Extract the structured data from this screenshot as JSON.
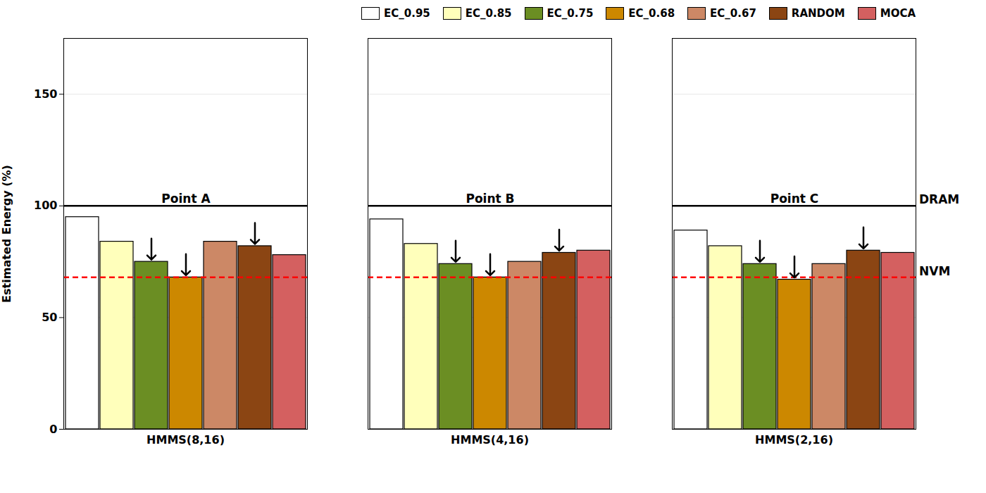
{
  "chart_data": {
    "type": "bar",
    "categories": [
      "HMMS(8,16)",
      "HMMS(4,16)",
      "HMMS(2,16)"
    ],
    "series": [
      {
        "name": "EC_0.95",
        "color": "#ffffff",
        "values": [
          95,
          94,
          89
        ]
      },
      {
        "name": "EC_0.85",
        "color": "#ffffbb",
        "values": [
          84,
          83,
          82
        ]
      },
      {
        "name": "EC_0.75",
        "color": "#6b8e23",
        "values": [
          75,
          74,
          74
        ]
      },
      {
        "name": "EC_0.68",
        "color": "#cc8800",
        "values": [
          68,
          68,
          67
        ]
      },
      {
        "name": "EC_0.67",
        "color": "#cc8866",
        "values": [
          84,
          75,
          74
        ]
      },
      {
        "name": "RANDOM",
        "color": "#8b4513",
        "values": [
          82,
          79,
          80
        ]
      },
      {
        "name": "MOCA",
        "color": "#d46060",
        "values": [
          78,
          80,
          79
        ]
      }
    ],
    "ylabel": "Estimated Energy (%)",
    "ylim": [
      0,
      175
    ],
    "yticks": [
      0,
      50,
      100,
      150
    ],
    "grid": true,
    "legend": "upper right",
    "reference_lines": [
      {
        "y": 100,
        "label": "DRAM",
        "color": "#000000",
        "line_style": "solid"
      },
      {
        "y": 68,
        "label": "NVM",
        "color": "red",
        "line_style": "dashed"
      }
    ],
    "annotations": [
      {
        "text": "Point A",
        "x": "HMMS(8,16)",
        "y": 100
      },
      {
        "text": "Point B",
        "x": "HMMS(4,16)",
        "y": 100
      },
      {
        "text": "Point C",
        "x": "HMMS(2,16)",
        "y": 100
      }
    ],
    "arrow_series": [
      "EC_0.75",
      "EC_0.68",
      "RANDOM"
    ]
  }
}
